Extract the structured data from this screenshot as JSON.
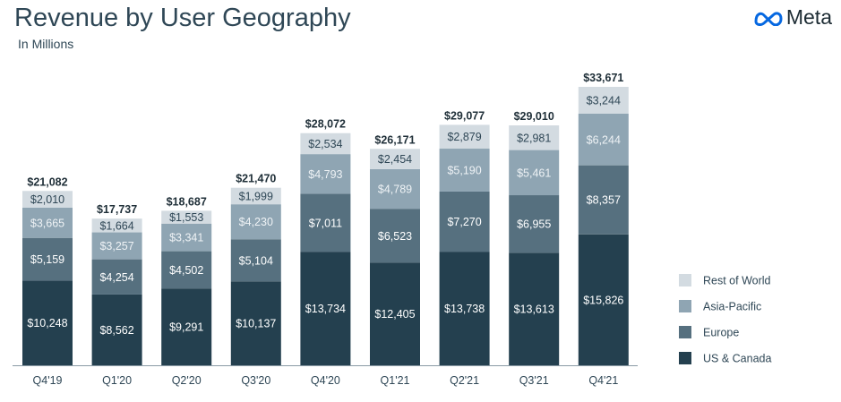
{
  "header": {
    "title": "Revenue by User Geography",
    "subtitle": "In Millions",
    "logo_text": "Meta"
  },
  "chart_data": {
    "type": "bar",
    "stacked": true,
    "title": "Revenue by User Geography",
    "subtitle": "In Millions",
    "categories": [
      "Q4'19",
      "Q1'20",
      "Q2'20",
      "Q3'20",
      "Q4'20",
      "Q1'21",
      "Q2'21",
      "Q3'21",
      "Q4'21"
    ],
    "series": [
      {
        "name": "US & Canada",
        "color": "#24404f",
        "values": [
          10248,
          8562,
          9291,
          10137,
          13734,
          12405,
          13738,
          13613,
          15826
        ]
      },
      {
        "name": "Europe",
        "color": "#56707f",
        "values": [
          5159,
          4254,
          4502,
          5104,
          7011,
          6523,
          7270,
          6955,
          8357
        ]
      },
      {
        "name": "Asia-Pacific",
        "color": "#8fa5b3",
        "values": [
          3665,
          3257,
          3341,
          4230,
          4793,
          4789,
          5190,
          5461,
          6244
        ]
      },
      {
        "name": "Rest of World",
        "color": "#d3dbe1",
        "values": [
          2010,
          1664,
          1553,
          1999,
          2534,
          2454,
          2879,
          2981,
          3244
        ]
      }
    ],
    "totals": [
      21082,
      17737,
      18687,
      21470,
      28072,
      26171,
      29077,
      29010,
      33671
    ],
    "value_prefix": "$",
    "legend_position": "right",
    "grid": false,
    "ylim": [
      0,
      33671
    ]
  }
}
